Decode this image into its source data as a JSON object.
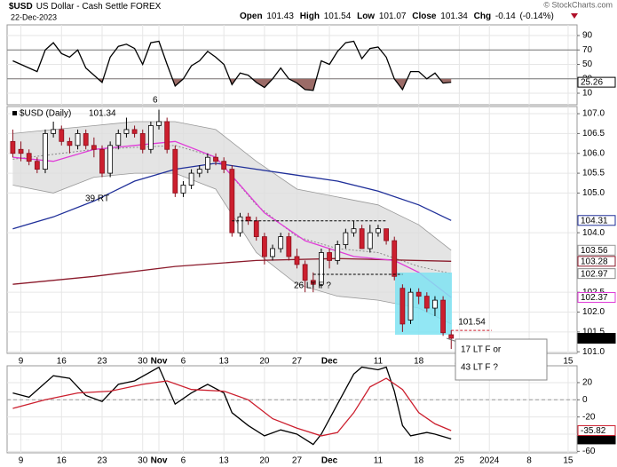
{
  "header": {
    "symbol": "$USD",
    "name": "US Dollar - Cash Settle FOREX",
    "date": "22-Dec-2023",
    "source": "© StockCharts.com",
    "quote_labels": [
      "Open",
      "High",
      "Low",
      "Close",
      "Chg"
    ],
    "chg": -0.14,
    "chg_pct": "(-0.14%)"
  },
  "annotations": [
    "6",
    "39 RT",
    "26 LT F ?",
    "17 LT F or",
    "43 LT F ?"
  ],
  "chart_data": [
    {
      "type": "line",
      "xlim": [
        -0.7,
        69.5
      ],
      "ylim": [
        -6,
        104.8
      ],
      "yticks": [
        10,
        30,
        50,
        70,
        90
      ],
      "overbought": 70,
      "oversold": 30,
      "oversold_color": "#9b6b67",
      "series": [
        {
          "color": "#000000",
          "labeled": true,
          "values": [
            55,
            50,
            45,
            40,
            70,
            80,
            65,
            60,
            70,
            45,
            35,
            25,
            60,
            75,
            78,
            72,
            50,
            80,
            82,
            50,
            20,
            30,
            48,
            55,
            68,
            60,
            50,
            22,
            38,
            35,
            25,
            18,
            30,
            45,
            30,
            24,
            15,
            14,
            55,
            50,
            68,
            80,
            82,
            58,
            72,
            74,
            60,
            30,
            15,
            40,
            40,
            30,
            38,
            24,
            25.26
          ]
        }
      ]
    },
    {
      "type": "candlestick",
      "panel_label": "$USD (Daily)",
      "xlim": [
        -0.7,
        69.5
      ],
      "ylim": [
        100.96,
        107.18
      ],
      "xticks": [
        {
          "value": 1,
          "label": "9"
        },
        {
          "value": 6,
          "label": "16"
        },
        {
          "value": 11,
          "label": "23"
        },
        {
          "value": 16,
          "label": "30"
        },
        {
          "value": 18,
          "label": "Nov"
        },
        {
          "value": 21,
          "label": "6"
        },
        {
          "value": 26,
          "label": "13"
        },
        {
          "value": 31,
          "label": "20"
        },
        {
          "value": 35,
          "label": "27"
        },
        {
          "value": 39,
          "label": "Dec"
        },
        {
          "value": 45,
          "label": "11"
        },
        {
          "value": 50,
          "label": "18"
        },
        {
          "value": 55,
          "label": "25"
        },
        {
          "value": 58.7,
          "label": "2024"
        },
        {
          "value": 63.6,
          "label": "8"
        },
        {
          "value": 68.4,
          "label": "15"
        }
      ],
      "yticks": [
        {
          "value": 107,
          "label": "107.0"
        },
        106.5,
        {
          "value": 106,
          "label": "106.0"
        },
        105.5,
        {
          "value": 105,
          "label": "105.0"
        },
        {
          "value": 104,
          "label": "104.0"
        },
        102.5,
        {
          "value": 102,
          "label": "102.0"
        },
        101.5,
        {
          "value": 101,
          "label": "101.0"
        }
      ],
      "up_color": "#ffffff",
      "down_color": "#cc1f2e",
      "band_color": "#dddddd",
      "ohlc": [
        [
          106.3,
          106.6,
          105.9,
          106.0
        ],
        [
          106.1,
          106.3,
          105.8,
          106.0
        ],
        [
          106.0,
          106.1,
          105.7,
          105.8
        ],
        [
          105.8,
          105.9,
          105.5,
          105.6
        ],
        [
          105.6,
          106.6,
          105.5,
          106.5
        ],
        [
          106.5,
          106.8,
          106.4,
          106.6
        ],
        [
          106.6,
          106.7,
          106.2,
          106.3
        ],
        [
          106.3,
          106.4,
          106.0,
          106.2
        ],
        [
          106.2,
          106.6,
          106.1,
          106.5
        ],
        [
          106.5,
          106.6,
          106.1,
          106.2
        ],
        [
          106.2,
          106.4,
          105.9,
          106.1
        ],
        [
          106.1,
          106.2,
          105.4,
          105.5
        ],
        [
          105.5,
          106.3,
          105.4,
          106.2
        ],
        [
          106.2,
          106.6,
          106.1,
          106.5
        ],
        [
          106.5,
          106.9,
          106.4,
          106.6
        ],
        [
          106.6,
          106.7,
          106.4,
          106.5
        ],
        [
          106.5,
          106.6,
          106.0,
          106.1
        ],
        [
          106.1,
          106.8,
          106.0,
          106.7
        ],
        [
          106.7,
          107.1,
          106.6,
          106.8
        ],
        [
          106.8,
          106.9,
          106.0,
          106.1
        ],
        [
          106.1,
          106.2,
          104.9,
          105.0
        ],
        [
          105.0,
          105.3,
          104.9,
          105.2
        ],
        [
          105.2,
          105.6,
          105.1,
          105.5
        ],
        [
          105.5,
          105.7,
          105.4,
          105.6
        ],
        [
          105.6,
          106.0,
          105.5,
          105.9
        ],
        [
          105.9,
          106.0,
          105.7,
          105.8
        ],
        [
          105.8,
          105.9,
          105.5,
          105.6
        ],
        [
          105.6,
          105.7,
          103.9,
          104.0
        ],
        [
          104.0,
          104.5,
          103.9,
          104.4
        ],
        [
          104.4,
          104.5,
          104.2,
          104.3
        ],
        [
          104.3,
          104.4,
          103.8,
          103.9
        ],
        [
          103.9,
          104.0,
          103.2,
          103.4
        ],
        [
          103.4,
          103.7,
          103.3,
          103.6
        ],
        [
          103.6,
          104.0,
          103.5,
          103.9
        ],
        [
          103.9,
          104.0,
          103.3,
          103.4
        ],
        [
          103.4,
          103.6,
          103.1,
          103.2
        ],
        [
          103.2,
          103.3,
          102.5,
          102.8
        ],
        [
          102.8,
          103.0,
          102.5,
          102.7
        ],
        [
          102.7,
          103.6,
          102.6,
          103.5
        ],
        [
          103.5,
          103.6,
          103.1,
          103.3
        ],
        [
          103.3,
          103.8,
          103.2,
          103.7
        ],
        [
          103.7,
          104.1,
          103.6,
          104.0
        ],
        [
          104.0,
          104.3,
          103.9,
          104.1
        ],
        [
          104.1,
          104.2,
          103.6,
          103.6
        ],
        [
          103.6,
          104.2,
          103.5,
          104.0
        ],
        [
          104.0,
          104.2,
          103.9,
          104.1
        ],
        [
          104.1,
          104.1,
          103.7,
          103.8
        ],
        [
          103.8,
          103.9,
          102.8,
          102.9
        ],
        [
          102.6,
          102.7,
          101.5,
          101.7
        ],
        [
          101.8,
          102.6,
          101.7,
          102.5
        ],
        [
          102.5,
          102.6,
          102.2,
          102.4
        ],
        [
          102.4,
          102.5,
          102.0,
          102.1
        ],
        [
          102.1,
          102.4,
          101.9,
          102.3
        ],
        [
          102.3,
          102.4,
          101.4,
          101.48
        ],
        [
          101.43,
          101.54,
          101.07,
          101.34
        ]
      ],
      "series": [
        {
          "role": "band-upper",
          "color": "#999999",
          "labeled": true,
          "x": [
            0,
            5,
            10,
            15,
            20,
            25,
            30,
            35,
            40,
            45,
            50,
            54
          ],
          "values": [
            106.5,
            106.6,
            106.7,
            106.8,
            106.8,
            106.6,
            105.8,
            105.1,
            104.9,
            104.7,
            104.2,
            103.56
          ]
        },
        {
          "role": "band-lower",
          "color": "#999999",
          "labeled": false,
          "x": [
            0,
            5,
            10,
            15,
            20,
            25,
            30,
            35,
            40,
            45,
            50,
            54
          ],
          "values": [
            105.2,
            105.0,
            105.4,
            105.5,
            105.5,
            105.1,
            103.5,
            102.7,
            102.4,
            102.3,
            102.1,
            101.7
          ]
        },
        {
          "color": "#8a8a8a",
          "dash": true,
          "labeled": true,
          "x": [
            0,
            10,
            20,
            25,
            30,
            35,
            40,
            45,
            50,
            54
          ],
          "values": [
            105.85,
            106.1,
            106.2,
            105.9,
            104.7,
            103.9,
            103.6,
            103.5,
            103.15,
            102.97
          ]
        },
        {
          "color": "#8b1a2b",
          "labeled": true,
          "x": [
            0,
            10,
            20,
            30,
            40,
            54
          ],
          "values": [
            102.7,
            102.9,
            103.15,
            103.3,
            103.35,
            103.28
          ]
        },
        {
          "color": "#1f2f99",
          "labeled": true,
          "x": [
            0,
            5,
            10,
            15,
            20,
            25,
            30,
            35,
            40,
            45,
            50,
            54
          ],
          "values": [
            104.1,
            104.4,
            104.8,
            105.3,
            105.6,
            105.75,
            105.6,
            105.45,
            105.3,
            105.05,
            104.7,
            104.31
          ]
        },
        {
          "color": "#e03cd8",
          "labeled": true,
          "x": [
            0,
            5,
            10,
            15,
            20,
            25,
            31,
            36,
            42,
            47,
            50,
            54
          ],
          "values": [
            105.9,
            105.8,
            106.1,
            106.2,
            106.3,
            105.9,
            104.5,
            103.8,
            103.4,
            103.3,
            103.0,
            102.37
          ]
        }
      ],
      "hlines": [
        {
          "value": 104.3,
          "x": [
            27,
            46
          ],
          "color": "#000000"
        },
        {
          "value": 102.95,
          "x": [
            37,
            48
          ],
          "color": "#000000"
        },
        {
          "value": 101.54,
          "x": [
            54,
            59
          ],
          "color": "#cc1f2e",
          "labeled": true
        }
      ]
    },
    {
      "type": "line",
      "xlim": [
        -0.7,
        69.5
      ],
      "ylim": [
        -61.7,
        39.6
      ],
      "yticks": [
        20,
        0,
        -20,
        -40,
        -60
      ],
      "zero_line": true,
      "xticks": [
        {
          "value": 1,
          "label": "9"
        },
        {
          "value": 6,
          "label": "16"
        },
        {
          "value": 11,
          "label": "23"
        },
        {
          "value": 16,
          "label": "30"
        },
        {
          "value": 18,
          "label": "Nov"
        },
        {
          "value": 21,
          "label": "6"
        },
        {
          "value": 26,
          "label": "13"
        },
        {
          "value": 31,
          "label": "20"
        },
        {
          "value": 35,
          "label": "27"
        },
        {
          "value": 39,
          "label": "Dec"
        },
        {
          "value": 45,
          "label": "11"
        },
        {
          "value": 50,
          "label": "18"
        },
        {
          "value": 55,
          "label": "25"
        },
        {
          "value": 58.7,
          "label": "2024"
        },
        {
          "value": 63.6,
          "label": "8"
        },
        {
          "value": 68.4,
          "label": "15"
        }
      ],
      "series": [
        {
          "color": "#000000",
          "labeled": true,
          "filled_label": true,
          "x": [
            0,
            2,
            5,
            7,
            9,
            11,
            13,
            15,
            18,
            20,
            22,
            24,
            26,
            27,
            29,
            31,
            33,
            35,
            37,
            38,
            40,
            42,
            43,
            45,
            46,
            47,
            48,
            49,
            51,
            52,
            54
          ],
          "values": [
            8,
            3,
            28,
            25,
            5,
            -2,
            18,
            22,
            38,
            -5,
            8,
            18,
            8,
            -15,
            -30,
            -42,
            -35,
            -40,
            -52,
            -40,
            -5,
            30,
            38,
            35,
            38,
            10,
            -30,
            -42,
            -38,
            -40,
            -45.61
          ]
        },
        {
          "color": "#cc1f2e",
          "labeled": true,
          "x": [
            0,
            4,
            8,
            12,
            16,
            19,
            22,
            26,
            29,
            32,
            35,
            38,
            40,
            42,
            44,
            46,
            48,
            50,
            52,
            54
          ],
          "values": [
            -10,
            0,
            8,
            10,
            18,
            22,
            12,
            10,
            0,
            -22,
            -33,
            -42,
            -38,
            -15,
            15,
            25,
            12,
            -15,
            -28,
            -35.82
          ]
        }
      ]
    }
  ]
}
